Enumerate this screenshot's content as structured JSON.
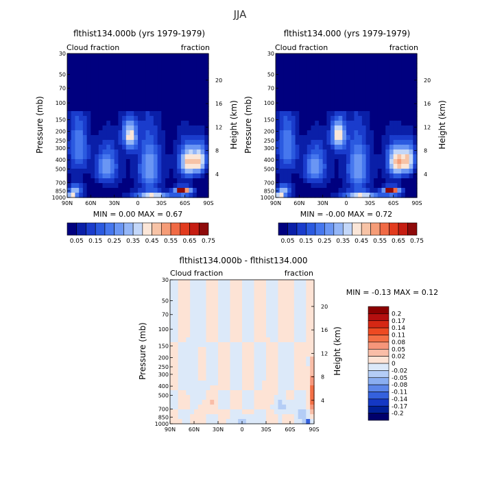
{
  "page_title": "JJA",
  "chart_data": [
    {
      "type": "heatmap",
      "id": "p1",
      "title": "flthist134.000b (yrs 1979-1979)",
      "left_label": "Cloud fraction",
      "right_label": "fraction",
      "ylabel": "Pressure (mb)",
      "y2label": "Height (km)",
      "x_ticks": [
        "90N",
        "60N",
        "30N",
        "0",
        "30S",
        "60S",
        "90S"
      ],
      "y_ticks": [
        "1000",
        "850",
        "700",
        "500",
        "400",
        "300",
        "250",
        "200",
        "150",
        "100",
        "70",
        "50",
        "30"
      ],
      "y_tick_values": [
        1000,
        850,
        700,
        500,
        400,
        300,
        250,
        200,
        150,
        100,
        70,
        50,
        30
      ],
      "y2_ticks": [
        "4",
        "8",
        "12",
        "16",
        "20"
      ],
      "y2_tick_values": [
        4,
        8,
        12,
        16,
        20
      ],
      "stats": "MIN = 0.00 MAX = 0.67",
      "colorbar_labels": [
        "0.05",
        "0.15",
        "0.25",
        "0.35",
        "0.45",
        "0.55",
        "0.65",
        "0.75"
      ],
      "features": [
        {
          "lat": 10,
          "p": 220,
          "value": 0.4,
          "wlat": 9,
          "wp": 80
        },
        {
          "lat": 40,
          "p": 470,
          "value": 0.28,
          "wlat": 14,
          "wp": 220
        },
        {
          "lat": 75,
          "p": 300,
          "value": 0.22,
          "wlat": 12,
          "wp": 200
        },
        {
          "lat": -15,
          "p": 500,
          "value": 0.3,
          "wlat": 14,
          "wp": 350
        },
        {
          "lat": -65,
          "p": 420,
          "value": 0.45,
          "wlat": 12,
          "wp": 160
        },
        {
          "lat": -80,
          "p": 400,
          "value": 0.35,
          "wlat": 8,
          "wp": 150
        },
        {
          "lat": -55,
          "p": 860,
          "value": 0.62,
          "wlat": 6,
          "wp": 45
        },
        {
          "lat": -60,
          "p": 850,
          "value": 0.45,
          "wlat": 11,
          "wp": 90
        },
        {
          "lat": -20,
          "p": 940,
          "value": 0.35,
          "wlat": 22,
          "wp": 80
        },
        {
          "lat": 85,
          "p": 980,
          "value": 0.62,
          "wlat": 5,
          "wp": 40
        },
        {
          "lat": 80,
          "p": 860,
          "value": 0.3,
          "wlat": 10,
          "wp": 120
        }
      ]
    },
    {
      "type": "heatmap",
      "id": "p2",
      "title": "flthist134.000 (yrs 1979-1979)",
      "left_label": "Cloud fraction",
      "right_label": "fraction",
      "ylabel": "Pressure (mb)",
      "y2label": "Height (km)",
      "x_ticks": [
        "90N",
        "60N",
        "30N",
        "0",
        "30S",
        "60S",
        "90S"
      ],
      "y_ticks": [
        "1000",
        "850",
        "700",
        "500",
        "400",
        "300",
        "250",
        "200",
        "150",
        "100",
        "70",
        "50",
        "30"
      ],
      "y_tick_values": [
        1000,
        850,
        700,
        500,
        400,
        300,
        250,
        200,
        150,
        100,
        70,
        50,
        30
      ],
      "y2_ticks": [
        "4",
        "8",
        "12",
        "16",
        "20"
      ],
      "y2_tick_values": [
        4,
        8,
        12,
        16,
        20
      ],
      "stats": "MIN = -0.00 MAX = 0.72",
      "colorbar_labels": [
        "0.05",
        "0.15",
        "0.25",
        "0.35",
        "0.45",
        "0.55",
        "0.65",
        "0.75"
      ],
      "features": [
        {
          "lat": 10,
          "p": 220,
          "value": 0.42,
          "wlat": 9,
          "wp": 80
        },
        {
          "lat": 40,
          "p": 470,
          "value": 0.28,
          "wlat": 14,
          "wp": 220
        },
        {
          "lat": 75,
          "p": 300,
          "value": 0.22,
          "wlat": 12,
          "wp": 200
        },
        {
          "lat": -15,
          "p": 500,
          "value": 0.3,
          "wlat": 14,
          "wp": 350
        },
        {
          "lat": -65,
          "p": 420,
          "value": 0.48,
          "wlat": 12,
          "wp": 160
        },
        {
          "lat": -80,
          "p": 400,
          "value": 0.35,
          "wlat": 8,
          "wp": 150
        },
        {
          "lat": -55,
          "p": 860,
          "value": 0.65,
          "wlat": 6,
          "wp": 45
        },
        {
          "lat": -60,
          "p": 850,
          "value": 0.45,
          "wlat": 11,
          "wp": 90
        },
        {
          "lat": -20,
          "p": 940,
          "value": 0.35,
          "wlat": 22,
          "wp": 80
        },
        {
          "lat": 85,
          "p": 980,
          "value": 0.65,
          "wlat": 5,
          "wp": 40
        },
        {
          "lat": 80,
          "p": 860,
          "value": 0.3,
          "wlat": 10,
          "wp": 120
        }
      ]
    },
    {
      "type": "heatmap",
      "id": "p3",
      "title": "flthist134.000b - flthist134.000",
      "left_label": "Cloud fraction",
      "right_label": "fraction",
      "ylabel": "Pressure (mb)",
      "y2label": "Height (km)",
      "x_ticks": [
        "90N",
        "60N",
        "30N",
        "0",
        "30S",
        "60S",
        "90S"
      ],
      "y_ticks": [
        "1000",
        "850",
        "700",
        "500",
        "400",
        "300",
        "250",
        "200",
        "150",
        "100",
        "70",
        "50",
        "30"
      ],
      "y_tick_values": [
        1000,
        850,
        700,
        500,
        400,
        300,
        250,
        200,
        150,
        100,
        70,
        50,
        30
      ],
      "y2_ticks": [
        "4",
        "8",
        "12",
        "16",
        "20"
      ],
      "y2_tick_values": [
        4,
        8,
        12,
        16,
        20
      ],
      "stats": "MIN = -0.13 MAX = 0.12",
      "colorbar_labels": [
        "0.2",
        "0.17",
        "0.14",
        "0.11",
        "0.08",
        "0.05",
        "0.02",
        "0",
        "-0.02",
        "-0.05",
        "-0.08",
        "-0.11",
        "-0.14",
        "-0.17",
        "-0.2"
      ],
      "features": [
        {
          "lat": 80,
          "p": 980,
          "value": 0.12,
          "wlat": 3,
          "wp": 30
        },
        {
          "lat": -87,
          "p": 500,
          "value": 0.1,
          "wlat": 3,
          "wp": 250
        },
        {
          "lat": -82,
          "p": 950,
          "value": -0.13,
          "wlat": 4,
          "wp": 60
        },
        {
          "lat": -75,
          "p": 800,
          "value": -0.04,
          "wlat": 6,
          "wp": 150
        },
        {
          "lat": 50,
          "p": 700,
          "value": 0.03,
          "wlat": 6,
          "wp": 60
        },
        {
          "lat": 35,
          "p": 600,
          "value": 0.02,
          "wlat": 5,
          "wp": 120
        },
        {
          "lat": -35,
          "p": 450,
          "value": 0.02,
          "wlat": 6,
          "wp": 160
        },
        {
          "lat": -50,
          "p": 650,
          "value": -0.03,
          "wlat": 6,
          "wp": 150
        },
        {
          "lat": 60,
          "p": 400,
          "value": -0.02,
          "wlat": 6,
          "wp": 200
        },
        {
          "lat": 0,
          "p": 900,
          "value": -0.03,
          "wlat": 12,
          "wp": 80
        },
        {
          "lat": -55,
          "p": 870,
          "value": 0.04,
          "wlat": 5,
          "wp": 50
        }
      ]
    }
  ]
}
